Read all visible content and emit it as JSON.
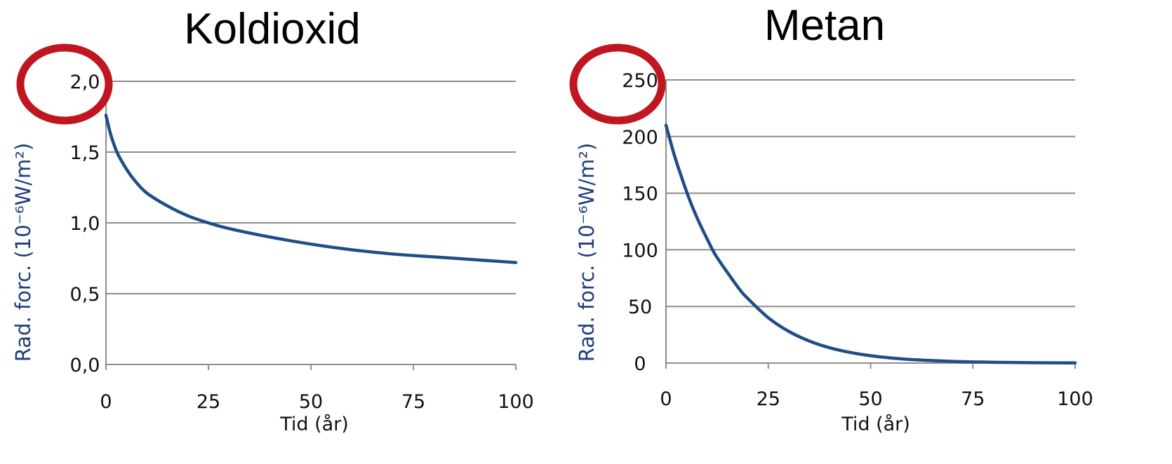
{
  "colors": {
    "series": "#1f4e87",
    "grid": "#8c8c8c",
    "highlight": "#c0161f",
    "ylabel": "#1f3f7a"
  },
  "chart_data": [
    {
      "type": "line",
      "title": "Koldioxid",
      "xlabel": "Tid (år)",
      "ylabel": "Rad. forc. (10⁻⁶W/m²)",
      "xlim": [
        0,
        100
      ],
      "ylim": [
        0,
        2.0
      ],
      "x_ticks": [
        0,
        25,
        50,
        75,
        100
      ],
      "y_ticks": [
        0,
        0.5,
        1.0,
        1.5,
        2.0
      ],
      "x_tick_labels": [
        "0",
        "25",
        "50",
        "75",
        "100"
      ],
      "y_tick_labels": [
        "0,0",
        "0,5",
        "1,0",
        "1,5",
        "2,0"
      ],
      "grid": true,
      "highlighted_tick": "2,0",
      "series": [
        {
          "x": [
            0,
            1,
            2,
            3,
            5,
            7,
            10,
            15,
            20,
            25,
            30,
            40,
            50,
            60,
            70,
            80,
            90,
            100
          ],
          "y": [
            1.76,
            1.64,
            1.55,
            1.48,
            1.38,
            1.3,
            1.21,
            1.12,
            1.05,
            1.0,
            0.96,
            0.9,
            0.85,
            0.81,
            0.78,
            0.76,
            0.74,
            0.72
          ]
        }
      ]
    },
    {
      "type": "line",
      "title": "Metan",
      "xlabel": "Tid (år)",
      "ylabel": "Rad. forc. (10⁻⁶W/m²)",
      "xlim": [
        0,
        100
      ],
      "ylim": [
        0,
        250
      ],
      "x_ticks": [
        0,
        25,
        50,
        75,
        100
      ],
      "y_ticks": [
        0,
        50,
        100,
        150,
        200,
        250
      ],
      "x_tick_labels": [
        "0",
        "25",
        "50",
        "75",
        "100"
      ],
      "y_tick_labels": [
        "0",
        "50",
        "100",
        "150",
        "200",
        "250"
      ],
      "grid": true,
      "highlighted_tick": "250",
      "series": [
        {
          "x": [
            0,
            2,
            4,
            6,
            8,
            10,
            12,
            15,
            18,
            20,
            25,
            30,
            35,
            40,
            45,
            50,
            55,
            60,
            70,
            80,
            90,
            100
          ],
          "y": [
            210,
            184,
            162,
            142,
            125,
            110,
            96,
            80,
            65,
            57,
            40,
            28,
            19.5,
            13.5,
            9.4,
            6.5,
            4.5,
            3.1,
            1.5,
            0.7,
            0.3,
            0.15
          ]
        }
      ]
    }
  ]
}
